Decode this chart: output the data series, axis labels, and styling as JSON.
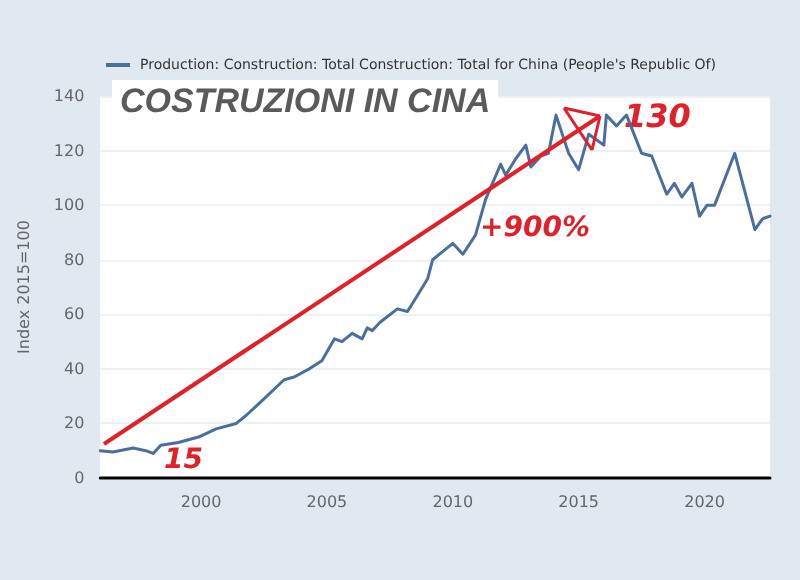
{
  "chart_data": {
    "type": "line",
    "title": "COSTRUZIONI IN CINA",
    "ylabel": "Index 2015=100",
    "annotations": [
      "+900%",
      "130",
      "15"
    ],
    "series": [
      {
        "name": "Production: Construction: Total Construction: Total for China (People's Republic Of)",
        "color": "#4a6f9c",
        "x": [
          1996.0,
          1996.5,
          1997.3,
          1997.8,
          1998.1,
          1998.4,
          1999.1,
          1999.9,
          2000.6,
          2001.4,
          2001.8,
          2002.5,
          2003.3,
          2003.7,
          2004.3,
          2004.8,
          2005.3,
          2005.6,
          2006.0,
          2006.4,
          2006.6,
          2006.8,
          2007.1,
          2007.8,
          2008.2,
          2008.6,
          2009.0,
          2009.2,
          2010.0,
          2010.4,
          2010.9,
          2011.3,
          2011.9,
          2012.1,
          2012.5,
          2012.9,
          2013.1,
          2013.5,
          2013.8,
          2014.1,
          2014.6,
          2015.0,
          2015.4,
          2016.0,
          2016.1,
          2016.5,
          2016.9,
          2017.5,
          2017.9,
          2018.5,
          2018.8,
          2019.1,
          2019.5,
          2019.8,
          2020.1,
          2020.4,
          2021.2,
          2022.0,
          2022.3,
          2022.6
        ],
        "values": [
          10,
          9.5,
          11,
          10,
          9,
          12,
          13,
          15,
          18,
          20,
          23,
          29,
          36,
          37,
          40,
          43,
          51,
          50,
          53,
          51,
          55,
          54,
          57,
          62,
          61,
          67,
          73,
          80,
          86,
          82,
          89,
          102,
          115,
          111,
          117,
          122,
          114,
          118,
          119,
          133,
          119,
          113,
          126,
          122,
          133,
          129,
          133,
          119,
          118,
          104,
          108,
          103,
          108,
          96,
          100,
          100,
          119,
          91,
          95,
          96
        ]
      }
    ],
    "xlim": [
      1996,
      2022.6
    ],
    "xticks": [
      2000,
      2005,
      2010,
      2015,
      2020
    ],
    "ylim": [
      0,
      140
    ],
    "yticks": [
      0,
      20,
      40,
      60,
      80,
      100,
      120,
      140
    ],
    "grid": "y",
    "legend": "top left",
    "marker": "none",
    "line_style": "solid"
  }
}
